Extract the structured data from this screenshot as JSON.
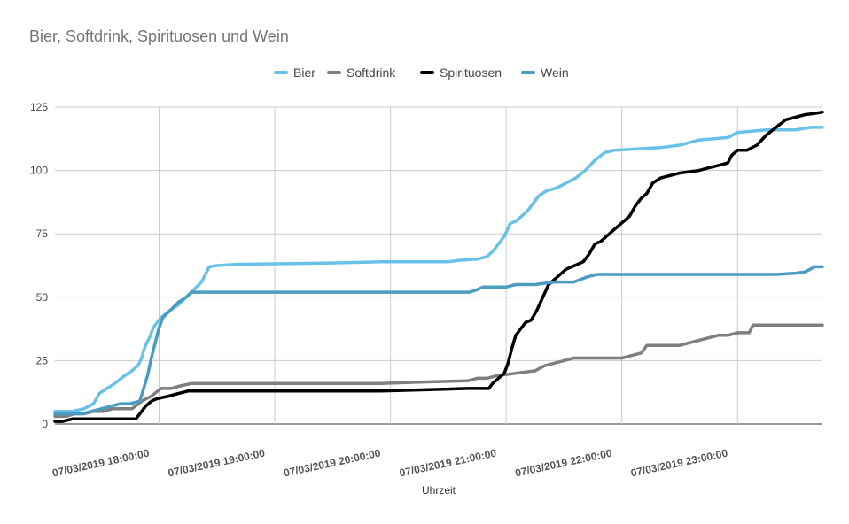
{
  "chart_data": {
    "type": "line",
    "title": "Bier, Softdrink, Spirituosen und Wein",
    "xlabel": "Uhrzeit",
    "ylabel": "",
    "ylim": [
      0,
      125
    ],
    "yticks": [
      0,
      25,
      50,
      75,
      100,
      125
    ],
    "xlim": [
      "07/03/2019 17:06:00",
      "07/03/2019 23:44:00"
    ],
    "xticks": [
      "07/03/2019 18:00:00",
      "07/03/2019 19:00:00",
      "07/03/2019 20:00:00",
      "07/03/2019 21:00:00",
      "07/03/2019 22:00:00",
      "07/03/2019 23:00:00"
    ],
    "grid": true,
    "legend_position": "top",
    "colors": {
      "Bier": "#6ac1e8",
      "Softdrink": "#7f7f7f",
      "Spirituosen": "#000000",
      "Wein": "#4a9cc0",
      "grid": "#cccccc",
      "text": "#444444",
      "title": "#757575"
    },
    "series": [
      {
        "name": "Bier",
        "points": [
          [
            "17:06",
            5
          ],
          [
            "17:15",
            5
          ],
          [
            "17:21",
            6
          ],
          [
            "17:26",
            8
          ],
          [
            "17:29",
            12
          ],
          [
            "17:33",
            14
          ],
          [
            "17:37",
            16
          ],
          [
            "17:42",
            19
          ],
          [
            "17:46",
            21
          ],
          [
            "17:49",
            23
          ],
          [
            "17:51",
            26
          ],
          [
            "17:52",
            29
          ],
          [
            "17:53",
            31
          ],
          [
            "17:55",
            34
          ],
          [
            "17:57",
            38
          ],
          [
            "17:59",
            40
          ],
          [
            "18:01",
            42
          ],
          [
            "18:06",
            45
          ],
          [
            "18:10",
            47
          ],
          [
            "18:14",
            50
          ],
          [
            "18:18",
            53
          ],
          [
            "18:22",
            56
          ],
          [
            "18:26",
            62
          ],
          [
            "18:30",
            62.5
          ],
          [
            "18:40",
            63
          ],
          [
            "19:30",
            63.5
          ],
          [
            "19:55",
            64
          ],
          [
            "20:30",
            64
          ],
          [
            "20:35",
            64.5
          ],
          [
            "20:45",
            65
          ],
          [
            "20:50",
            66
          ],
          [
            "20:53",
            68
          ],
          [
            "20:56",
            71
          ],
          [
            "20:59",
            74
          ],
          [
            "21:02",
            79
          ],
          [
            "21:05",
            80
          ],
          [
            "21:08",
            82
          ],
          [
            "21:11",
            84
          ],
          [
            "21:14",
            87
          ],
          [
            "21:17",
            90
          ],
          [
            "21:21",
            92
          ],
          [
            "21:26",
            93
          ],
          [
            "21:31",
            95
          ],
          [
            "21:36",
            97
          ],
          [
            "21:41",
            100
          ],
          [
            "21:46",
            104
          ],
          [
            "21:51",
            107
          ],
          [
            "21:56",
            108
          ],
          [
            "22:20",
            109
          ],
          [
            "22:30",
            110
          ],
          [
            "22:40",
            112
          ],
          [
            "22:55",
            113
          ],
          [
            "23:00",
            115
          ],
          [
            "23:15",
            116
          ],
          [
            "23:30",
            116
          ],
          [
            "23:38",
            117
          ],
          [
            "23:44",
            117
          ]
        ]
      },
      {
        "name": "Softdrink",
        "points": [
          [
            "17:06",
            3
          ],
          [
            "17:12",
            3
          ],
          [
            "17:16",
            4
          ],
          [
            "17:21",
            4
          ],
          [
            "17:26",
            5
          ],
          [
            "17:31",
            5
          ],
          [
            "17:36",
            6
          ],
          [
            "17:41",
            6
          ],
          [
            "17:46",
            6
          ],
          [
            "17:51",
            9
          ],
          [
            "17:56",
            11
          ],
          [
            "18:01",
            14
          ],
          [
            "18:06",
            14
          ],
          [
            "18:11",
            15
          ],
          [
            "18:17",
            16
          ],
          [
            "18:30",
            16
          ],
          [
            "19:00",
            16
          ],
          [
            "19:30",
            16
          ],
          [
            "19:55",
            16
          ],
          [
            "20:15",
            16.5
          ],
          [
            "20:40",
            17
          ],
          [
            "20:45",
            18
          ],
          [
            "20:50",
            18
          ],
          [
            "20:55",
            19
          ],
          [
            "21:05",
            20
          ],
          [
            "21:15",
            21
          ],
          [
            "21:20",
            23
          ],
          [
            "21:25",
            24
          ],
          [
            "21:35",
            26
          ],
          [
            "21:50",
            26
          ],
          [
            "22:00",
            26
          ],
          [
            "22:05",
            27
          ],
          [
            "22:10",
            28
          ],
          [
            "22:13",
            31
          ],
          [
            "22:30",
            31
          ],
          [
            "22:40",
            33
          ],
          [
            "22:50",
            35
          ],
          [
            "22:55",
            35
          ],
          [
            "23:00",
            36
          ],
          [
            "23:06",
            36
          ],
          [
            "23:08",
            39
          ],
          [
            "23:44",
            39
          ]
        ]
      },
      {
        "name": "Spirituosen",
        "points": [
          [
            "17:06",
            1
          ],
          [
            "17:10",
            1
          ],
          [
            "17:15",
            2
          ],
          [
            "17:20",
            2
          ],
          [
            "17:30",
            2
          ],
          [
            "17:40",
            2
          ],
          [
            "17:48",
            2
          ],
          [
            "17:51",
            5
          ],
          [
            "17:53",
            7
          ],
          [
            "17:56",
            9
          ],
          [
            "17:59",
            10
          ],
          [
            "18:05",
            11
          ],
          [
            "18:10",
            12
          ],
          [
            "18:15",
            13
          ],
          [
            "18:30",
            13
          ],
          [
            "19:00",
            13
          ],
          [
            "19:30",
            13
          ],
          [
            "19:55",
            13
          ],
          [
            "20:20",
            13.5
          ],
          [
            "20:40",
            14
          ],
          [
            "20:51",
            14
          ],
          [
            "20:53",
            16
          ],
          [
            "20:56",
            18
          ],
          [
            "20:59",
            20
          ],
          [
            "21:01",
            24
          ],
          [
            "21:03",
            30
          ],
          [
            "21:05",
            35
          ],
          [
            "21:07",
            37
          ],
          [
            "21:10",
            40
          ],
          [
            "21:13",
            41
          ],
          [
            "21:16",
            45
          ],
          [
            "21:19",
            50
          ],
          [
            "21:22",
            55
          ],
          [
            "21:25",
            57
          ],
          [
            "21:28",
            59
          ],
          [
            "21:31",
            61
          ],
          [
            "21:34",
            62
          ],
          [
            "21:37",
            63
          ],
          [
            "21:40",
            64
          ],
          [
            "21:43",
            67
          ],
          [
            "21:46",
            71
          ],
          [
            "21:49",
            72
          ],
          [
            "21:52",
            74
          ],
          [
            "21:55",
            76
          ],
          [
            "21:58",
            78
          ],
          [
            "22:01",
            80
          ],
          [
            "22:04",
            82
          ],
          [
            "22:07",
            86
          ],
          [
            "22:10",
            89
          ],
          [
            "22:13",
            91
          ],
          [
            "22:16",
            95
          ],
          [
            "22:20",
            97
          ],
          [
            "22:25",
            98
          ],
          [
            "22:30",
            99
          ],
          [
            "22:40",
            100
          ],
          [
            "22:45",
            101
          ],
          [
            "22:50",
            102
          ],
          [
            "22:55",
            103
          ],
          [
            "22:57",
            106
          ],
          [
            "23:00",
            108
          ],
          [
            "23:05",
            108
          ],
          [
            "23:10",
            110
          ],
          [
            "23:15",
            114
          ],
          [
            "23:20",
            117
          ],
          [
            "23:25",
            120
          ],
          [
            "23:30",
            121
          ],
          [
            "23:35",
            122
          ],
          [
            "23:40",
            122.5
          ],
          [
            "23:44",
            123
          ]
        ]
      },
      {
        "name": "Wein",
        "points": [
          [
            "17:06",
            4
          ],
          [
            "17:15",
            4
          ],
          [
            "17:20",
            4
          ],
          [
            "17:25",
            5
          ],
          [
            "17:30",
            6
          ],
          [
            "17:35",
            7
          ],
          [
            "17:40",
            8
          ],
          [
            "17:45",
            8
          ],
          [
            "17:50",
            9
          ],
          [
            "17:52",
            14
          ],
          [
            "17:54",
            19
          ],
          [
            "17:56",
            26
          ],
          [
            "17:58",
            32
          ],
          [
            "18:00",
            38
          ],
          [
            "18:02",
            42
          ],
          [
            "18:06",
            45
          ],
          [
            "18:10",
            48
          ],
          [
            "18:14",
            50
          ],
          [
            "18:17",
            52
          ],
          [
            "18:30",
            52
          ],
          [
            "19:00",
            52
          ],
          [
            "19:30",
            52
          ],
          [
            "20:00",
            52
          ],
          [
            "20:30",
            52
          ],
          [
            "20:41",
            52
          ],
          [
            "20:45",
            53
          ],
          [
            "20:48",
            54
          ],
          [
            "21:00",
            54
          ],
          [
            "21:05",
            55
          ],
          [
            "21:10",
            55
          ],
          [
            "21:15",
            55
          ],
          [
            "21:20",
            55.5
          ],
          [
            "21:25",
            56
          ],
          [
            "21:35",
            56
          ],
          [
            "21:42",
            58
          ],
          [
            "21:47",
            59
          ],
          [
            "22:00",
            59
          ],
          [
            "22:30",
            59
          ],
          [
            "23:00",
            59
          ],
          [
            "23:20",
            59
          ],
          [
            "23:30",
            59.5
          ],
          [
            "23:35",
            60
          ],
          [
            "23:40",
            62
          ],
          [
            "23:44",
            62
          ]
        ]
      }
    ]
  }
}
